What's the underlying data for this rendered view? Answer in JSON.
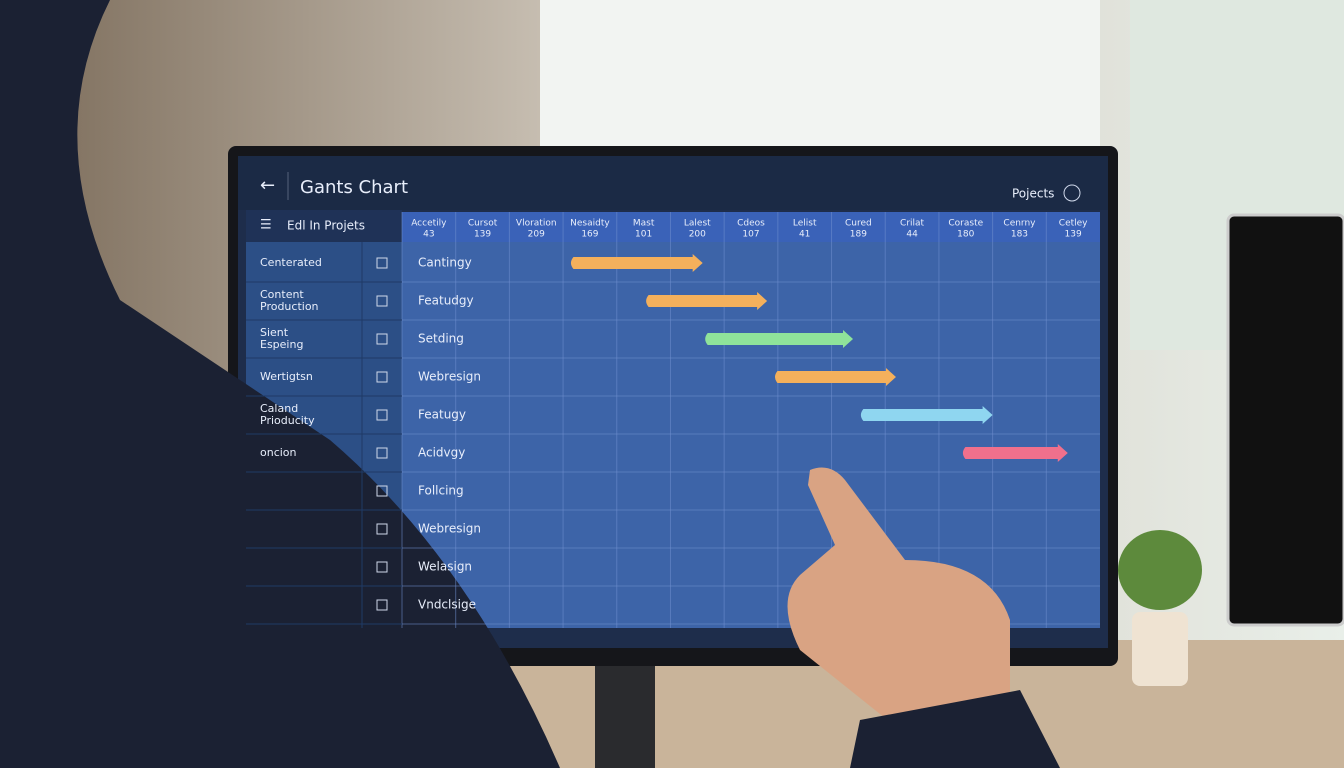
{
  "header": {
    "title": "Gants Chart",
    "projects": "Pojects"
  },
  "sidebar": {
    "title": "Edl In Projets",
    "items": [
      "Centerated",
      "Content Production",
      "Sient Espeing",
      "Wertigtsn",
      "Caland Prioducity",
      "oncion"
    ]
  },
  "gantt": {
    "columns": [
      {
        "name": "Accetily",
        "num": "43"
      },
      {
        "name": "Cursot",
        "num": "139"
      },
      {
        "name": "Vloration",
        "num": "209"
      },
      {
        "name": "Nesaidty",
        "num": "169"
      },
      {
        "name": "Mast",
        "num": "101"
      },
      {
        "name": "Lalest",
        "num": "200"
      },
      {
        "name": "Cdeos",
        "num": "107"
      },
      {
        "name": "Lelist",
        "num": "41"
      },
      {
        "name": "Cured",
        "num": "189"
      },
      {
        "name": "Crilat",
        "num": "44"
      },
      {
        "name": "Coraste",
        "num": "180"
      },
      {
        "name": "Cenrny",
        "num": "183"
      },
      {
        "name": "Cetley",
        "num": "139"
      }
    ],
    "rows": [
      "Cantingy",
      "Featudgy",
      "Setding",
      "Webresign",
      "Featugy",
      "Acidvgy",
      "Follcing",
      "Webresign",
      "Welasign",
      "Vndclsige"
    ],
    "tasks": [
      {
        "row": 0,
        "start": 3.1,
        "end": 5.6,
        "color": "#f4b05c"
      },
      {
        "row": 1,
        "start": 4.5,
        "end": 6.8,
        "color": "#f4b05c"
      },
      {
        "row": 2,
        "start": 5.6,
        "end": 8.4,
        "color": "#8fe39a"
      },
      {
        "row": 3,
        "start": 6.9,
        "end": 9.2,
        "color": "#f4b05c"
      },
      {
        "row": 4,
        "start": 8.5,
        "end": 11.0,
        "color": "#8fd6f0"
      },
      {
        "row": 5,
        "start": 10.4,
        "end": 12.4,
        "color": "#f0708c"
      }
    ]
  }
}
